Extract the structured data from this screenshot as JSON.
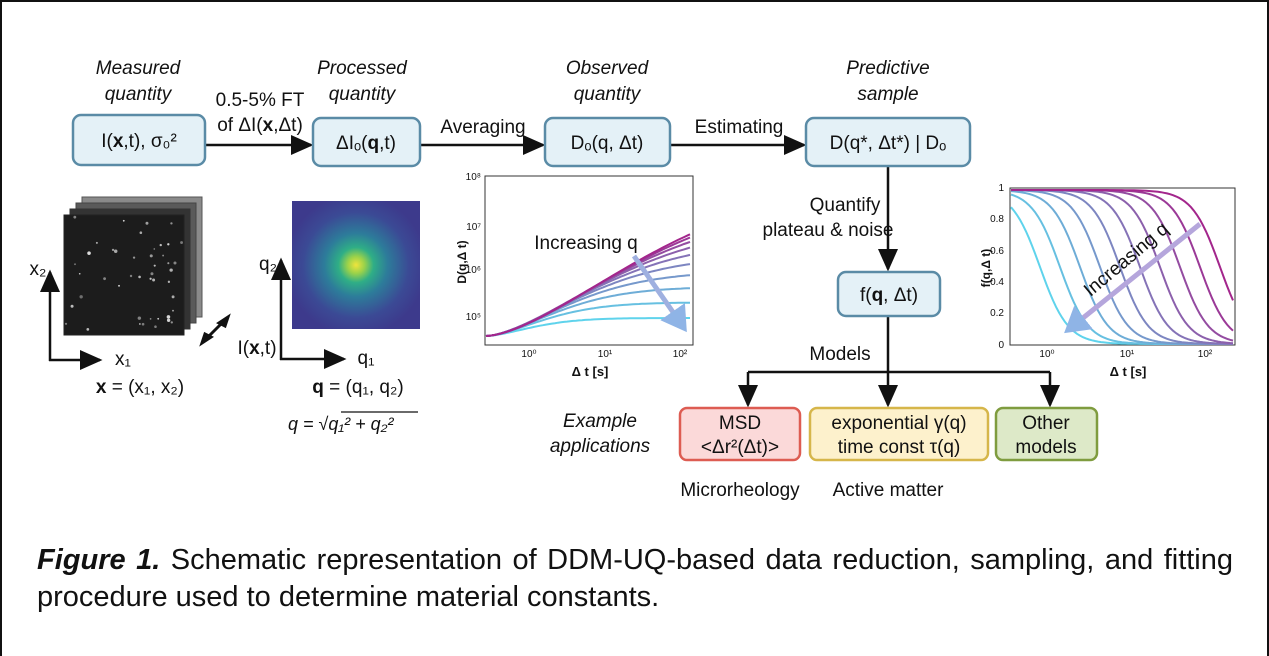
{
  "labels": {
    "measured": [
      "Measured",
      "quantity"
    ],
    "processed": [
      "Processed",
      "quantity"
    ],
    "observed": [
      "Observed",
      "quantity"
    ],
    "predictive": [
      "Predictive",
      "sample"
    ],
    "ft": [
      "0.5-5% FT",
      "of ΔI(",
      "x",
      ",Δt)"
    ],
    "averaging": "Averaging",
    "estimating": "Estimating",
    "quantify": [
      "Quantify",
      "plateau & noise"
    ],
    "models": "Models",
    "example": [
      "Example",
      "applications"
    ],
    "microrheology": "Microrheology",
    "active": "Active matter"
  },
  "boxes": {
    "measured": [
      "I(",
      "x",
      ",t),  σ₀²"
    ],
    "processed": [
      "ΔIₒ(",
      "q",
      ",t)"
    ],
    "observed": "Dₒ(q, Δt)",
    "predictive": "D(q*, Δt*) | Dₒ",
    "f": [
      "f(",
      "q",
      ", Δt)"
    ],
    "msd": [
      "MSD",
      "<Δr²(Δt)>"
    ],
    "exponential": [
      "exponential γ(q)",
      "time const τ(q)"
    ],
    "other": [
      "Other",
      "models"
    ]
  },
  "images": {
    "x2": "x₂",
    "x1": "x₁",
    "x_eq": [
      "x",
      " = (x₁, x₂)"
    ],
    "ixt": [
      "I(",
      "x",
      ",t)"
    ],
    "q2": "q₂",
    "q1": "q₁",
    "q_eq": [
      "q",
      " = (q₁, q₂)"
    ],
    "formula": [
      "q = √",
      "q₁² + q₂²"
    ]
  },
  "plot1": {
    "ylabel": "D(q,Δ t)",
    "xlabel": "Δ t [s]",
    "yticks": [
      "10⁸",
      "10⁷",
      "10⁶",
      "10⁵"
    ],
    "xticks": [
      "10⁰",
      "10¹",
      "10²"
    ],
    "annotation": "Increasing q"
  },
  "plot2": {
    "ylabel": "f(q,Δ t)",
    "xlabel": "Δ t [s]",
    "yticks": [
      "1",
      "0.8",
      "0.6",
      "0.4",
      "0.2",
      "0"
    ],
    "xticks": [
      "10⁰",
      "10¹",
      "10²"
    ],
    "annotation": "Increasing q"
  },
  "caption": {
    "label": "Figure 1.",
    "text": " Schematic representation of DDM-UQ-based data reduction, sampling, and fitting procedure used to determine material constants."
  }
}
